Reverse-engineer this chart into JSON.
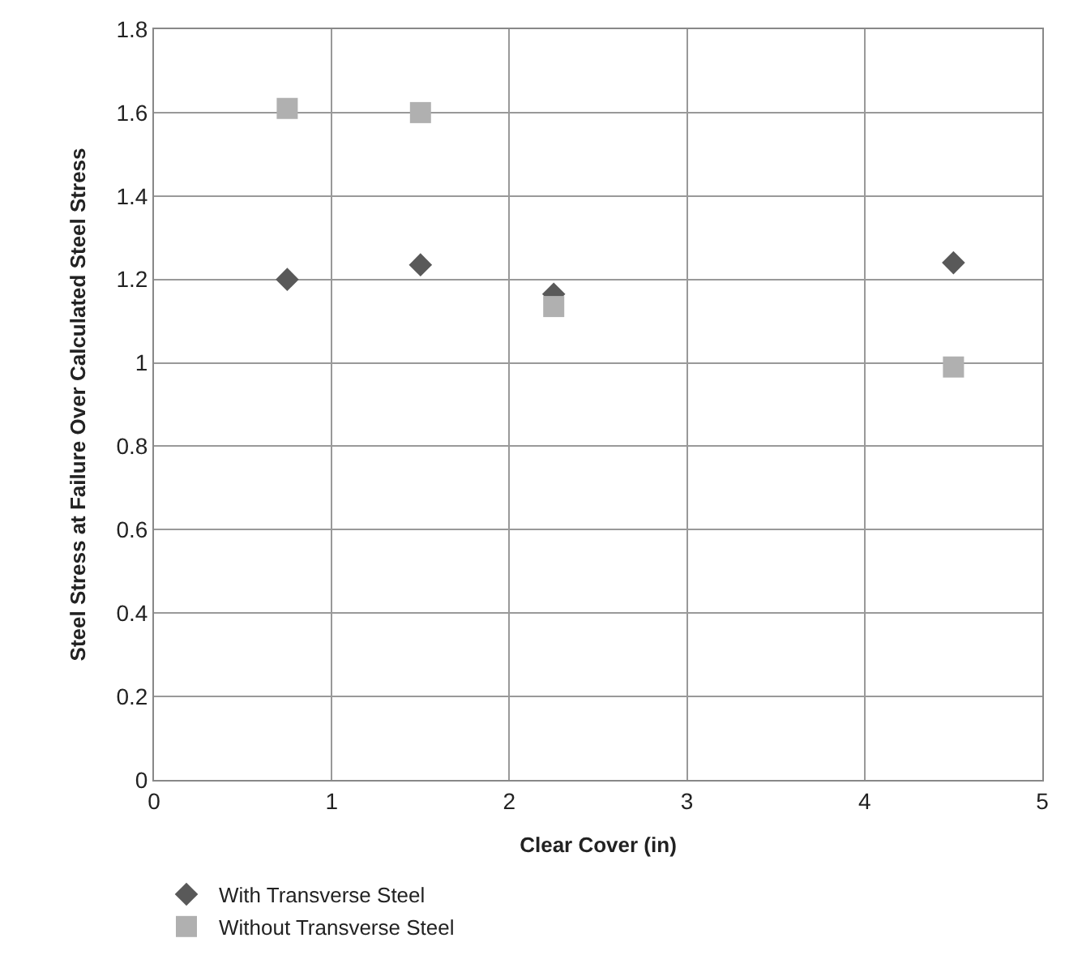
{
  "chart_data": {
    "type": "scatter",
    "xlabel": "Clear Cover (in)",
    "ylabel": "Steel Stress at Failure Over Calculated Steel Stress",
    "xlim": [
      0,
      5
    ],
    "xticks": [
      0,
      1,
      2,
      3,
      4,
      5
    ],
    "ylim": [
      0,
      1.8
    ],
    "yticks": [
      0,
      0.2,
      0.4,
      0.6,
      0.8,
      1,
      1.2,
      1.4,
      1.6,
      1.8
    ],
    "grid": true,
    "legend": "bottom left",
    "series": [
      {
        "name": "With Transverse Steel",
        "color": "#595959",
        "marker": "diamond",
        "x": [
          0.75,
          1.5,
          2.25,
          4.5
        ],
        "values": [
          1.2,
          1.235,
          1.165,
          1.24
        ]
      },
      {
        "name": "Without Transverse Steel",
        "color": "#b0b0b0",
        "marker": "square",
        "x": [
          0.75,
          1.5,
          2.25,
          4.5
        ],
        "values": [
          1.61,
          1.6,
          1.135,
          0.99
        ]
      }
    ]
  }
}
